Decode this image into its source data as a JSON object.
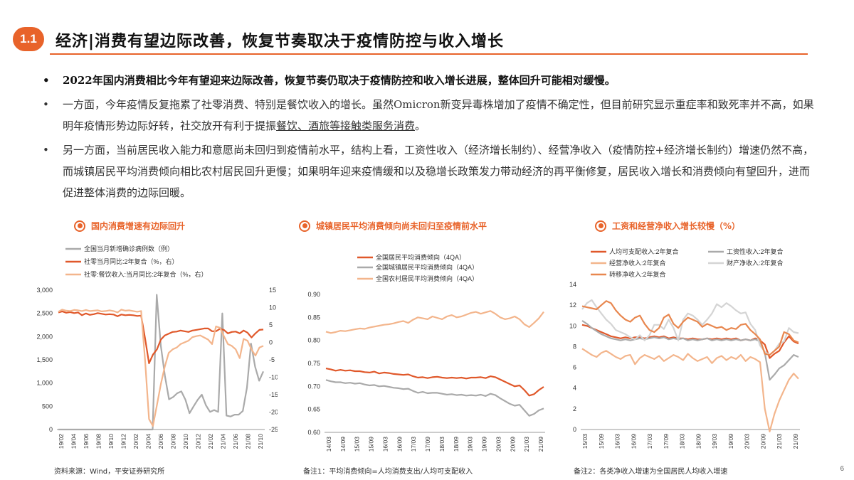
{
  "header": {
    "badge": "1.1",
    "title": "经济|消费有望边际改善，恢复节奏取决于疫情防控与收入增长"
  },
  "bullets": [
    {
      "text": "2022年国内消费相比今年有望迎来边际改善，恢复节奏仍取决于疫情防控和收入增长进展，整体回升可能相对缓慢。"
    },
    {
      "text": "一方面，今年疫情反复拖累了社零消费、特别是餐饮收入的增长。虽然Omicron新变异毒株增加了疫情不确定性，但目前研究显示重症率和致死率并不高，如果明年疫情形势边际好转，社交放开有利于提振",
      "underlined": "餐饮、酒旅等接触类服务消费",
      "tail": "。"
    },
    {
      "text": "另一方面，当前居民收入能力和意愿尚未回归到疫情前水平，结构上看，工资性收入（经济增长制约）、经营净收入（疫情防控+经济增长制约）增速仍然不高，而城镇居民平均消费倾向相比农村居民回升更慢；如果明年迎来疫情缓和以及稳增长政策发力带动经济的再平衡修复，居民收入增长和消费倾向有望回升，进而促进整体消费的边际回暖。"
    }
  ],
  "chart_titles": [
    "国内消费增速有边际回升",
    "城镇居民平均消费倾向尚未回归至疫情前水平",
    "工资和经营净收入增长较慢（%）"
  ],
  "notes": {
    "source": "资料来源：Wind，平安证券研究所",
    "note1": "备注1：平均消费倾向=人均消费支出/人均可支配收入",
    "note2": "备注2：各类净收入增速为全国居民人均收入增速",
    "page": "6"
  },
  "colors": {
    "accent": "#e8632a",
    "dark_orange": "#e0582a",
    "gray": "#aaaaaa",
    "light_orange": "#f3b58c",
    "light_gray": "#d4d4d4"
  },
  "chart_data": [
    {
      "type": "line",
      "legend": [
        "全国当月新增确诊病例数（例）",
        "社零当月同比:2年复合（%，右）",
        "社零:餐饮收入:当月同比:2年复合（%，右）"
      ],
      "xlabels": [
        "19/02",
        "19/04",
        "19/06",
        "19/08",
        "19/10",
        "19/12",
        "20/02",
        "20/04",
        "20/06",
        "20/08",
        "20/10",
        "20/12",
        "21/02",
        "21/04",
        "21/06",
        "21/08",
        "21/10"
      ],
      "ylim": [
        0,
        3000
      ],
      "yticks": [
        "0",
        "500",
        "1,000",
        "1,500",
        "2,000",
        "2,500",
        "3,000"
      ],
      "y2lim": [
        -25,
        15
      ],
      "y2ticks": [
        "-25",
        "-20",
        "-15",
        "-10",
        "-5",
        "0",
        "5",
        "10",
        "15"
      ],
      "series": [
        {
          "name": "全国当月新增确诊病例数（例）",
          "axis": "left",
          "color": "#aaaaaa",
          "values": [
            0,
            0,
            0,
            0,
            0,
            0,
            0,
            0,
            0,
            0,
            0,
            0,
            0,
            0,
            0,
            0,
            0,
            0,
            0,
            0,
            0,
            0,
            0,
            0,
            2900,
            1800,
            1150,
            650,
            700,
            780,
            820,
            640,
            350,
            500,
            640,
            750,
            520,
            380,
            420,
            380,
            2500,
            300,
            280,
            320,
            320,
            400,
            900,
            1850,
            1350,
            1050,
            1250
          ]
        },
        {
          "name": "社零当月同比:2年复合（%，右）",
          "axis": "right",
          "color": "#e0582a",
          "values": [
            8.6,
            8.9,
            8.5,
            8.7,
            8.4,
            8.6,
            7.8,
            8.3,
            7.9,
            8.1,
            8.4,
            8.2,
            8.0,
            8.1,
            8.0,
            7.5,
            8.0,
            7.8,
            7.9,
            7.8,
            7.6,
            7.7,
            1.2,
            -6.0,
            -3.5,
            -2.0,
            0.8,
            2.0,
            2.5,
            3.0,
            3.1,
            3.4,
            3.2,
            3.0,
            3.4,
            3.6,
            3.8,
            4.0,
            4.0,
            3.2,
            3.2,
            3.9,
            3.6,
            2.6,
            3.0,
            3.1,
            2.6,
            3.4,
            2.8,
            1.4,
            2.6,
            3.6,
            3.7
          ]
        },
        {
          "name": "社零:餐饮收入:当月同比:2年复合（%，右）",
          "axis": "right",
          "color": "#f3b58c",
          "values": [
            8.8,
            9.4,
            9.1,
            9.0,
            9.3,
            9.2,
            9.0,
            9.3,
            9.0,
            9.1,
            9.2,
            8.9,
            9.0,
            9.2,
            9.0,
            8.6,
            9.4,
            9.1,
            9.2,
            9.0,
            8.8,
            9.0,
            -5.0,
            -22.0,
            -24.0,
            -18.0,
            -12.0,
            -7.0,
            -3.0,
            -2.0,
            -1.5,
            -0.5,
            0.0,
            0.5,
            1.5,
            1.8,
            2.0,
            1.4,
            0.8,
            -0.5,
            4.6,
            4.2,
            1.8,
            -0.5,
            -1.0,
            -2.0,
            -4.5,
            1.0,
            0.5,
            -2.0,
            -3.8,
            -1.5,
            -1.0
          ]
        }
      ]
    },
    {
      "type": "line",
      "legend": [
        "全国居民平均消费倾向（4QA）",
        "全国城镇居民平均消费倾向（4QA）",
        "全国农村居民平均消费倾向（4QA）"
      ],
      "xlabels": [
        "14/03",
        "14/09",
        "15/03",
        "15/09",
        "16/03",
        "16/09",
        "17/03",
        "17/09",
        "18/03",
        "18/09",
        "19/03",
        "19/09",
        "20/03",
        "20/09",
        "21/03",
        "21/09"
      ],
      "ylim": [
        0.6,
        0.9
      ],
      "yticks": [
        "0.60",
        "0.65",
        "0.70",
        "0.75",
        "0.80",
        "0.85",
        "0.90"
      ],
      "series": [
        {
          "name": "全国居民平均消费倾向（4QA）",
          "color": "#e0582a",
          "values": [
            0.739,
            0.737,
            0.734,
            0.736,
            0.734,
            0.735,
            0.733,
            0.733,
            0.731,
            0.73,
            0.732,
            0.728,
            0.73,
            0.729,
            0.727,
            0.726,
            0.725,
            0.726,
            0.722,
            0.719,
            0.72,
            0.718,
            0.72,
            0.721,
            0.719,
            0.718,
            0.719,
            0.718,
            0.719,
            0.717,
            0.719,
            0.719,
            0.72,
            0.718,
            0.722,
            0.72,
            0.715,
            0.71,
            0.705,
            0.7,
            0.702,
            0.692,
            0.68,
            0.683,
            0.692,
            0.699
          ]
        },
        {
          "name": "全国城镇居民平均消费倾向（4QA）",
          "color": "#aaaaaa",
          "values": [
            0.714,
            0.711,
            0.709,
            0.709,
            0.707,
            0.708,
            0.706,
            0.707,
            0.704,
            0.702,
            0.703,
            0.7,
            0.701,
            0.699,
            0.697,
            0.696,
            0.694,
            0.695,
            0.69,
            0.686,
            0.688,
            0.685,
            0.686,
            0.686,
            0.684,
            0.682,
            0.683,
            0.681,
            0.682,
            0.68,
            0.681,
            0.68,
            0.682,
            0.679,
            0.684,
            0.681,
            0.674,
            0.668,
            0.662,
            0.658,
            0.66,
            0.648,
            0.636,
            0.64,
            0.648,
            0.652
          ]
        },
        {
          "name": "全国农村居民平均消费倾向（4QA）",
          "color": "#f3b58c",
          "values": [
            0.819,
            0.816,
            0.818,
            0.821,
            0.82,
            0.822,
            0.824,
            0.826,
            0.825,
            0.828,
            0.83,
            0.832,
            0.834,
            0.835,
            0.837,
            0.84,
            0.842,
            0.838,
            0.845,
            0.85,
            0.848,
            0.846,
            0.852,
            0.849,
            0.846,
            0.852,
            0.855,
            0.85,
            0.852,
            0.856,
            0.86,
            0.862,
            0.858,
            0.861,
            0.864,
            0.858,
            0.85,
            0.846,
            0.848,
            0.852,
            0.846,
            0.835,
            0.829,
            0.838,
            0.848,
            0.862
          ]
        }
      ]
    },
    {
      "type": "line",
      "legend": [
        "人均可支配收入:2年复合",
        "工资性收入:2年复合",
        "经营净收入:2年复合",
        "财产净收入:2年复合",
        "转移净收入:2年复合"
      ],
      "xlabels": [
        "15/03",
        "15/09",
        "16/03",
        "16/09",
        "17/03",
        "17/09",
        "18/03",
        "18/09",
        "19/03",
        "19/09",
        "20/03",
        "20/09",
        "21/03",
        "21/09"
      ],
      "ylim": [
        0,
        14
      ],
      "yticks": [
        "0",
        "2",
        "4",
        "6",
        "8",
        "10",
        "12",
        "14"
      ],
      "series": [
        {
          "name": "人均可支配收入:2年复合",
          "color": "#e0582a",
          "values": [
            10.1,
            10.0,
            9.8,
            9.6,
            9.4,
            9.2,
            9.0,
            8.9,
            8.8,
            8.9,
            8.8,
            8.9,
            8.9,
            8.8,
            8.9,
            9.0,
            8.9,
            9.0,
            8.8,
            8.9,
            8.8,
            8.8,
            8.7,
            8.8,
            8.7,
            8.7,
            8.8,
            8.7,
            8.8,
            8.7,
            8.8,
            8.7,
            8.8,
            8.6,
            8.7,
            8.6,
            8.8,
            8.6,
            8.2,
            6.9,
            7.3,
            7.6,
            8.4,
            9.0,
            8.5,
            8.3
          ]
        },
        {
          "name": "工资性收入:2年复合",
          "color": "#aaaaaa",
          "values": [
            10.5,
            10.2,
            9.8,
            9.5,
            9.2,
            9.0,
            8.8,
            8.7,
            8.6,
            8.7,
            8.6,
            8.7,
            8.8,
            8.7,
            8.8,
            8.9,
            8.8,
            8.9,
            8.7,
            8.8,
            8.7,
            8.8,
            8.6,
            8.7,
            8.6,
            8.7,
            8.8,
            8.6,
            8.7,
            8.6,
            8.7,
            8.6,
            8.7,
            8.6,
            8.7,
            8.6,
            8.7,
            8.5,
            7.4,
            4.8,
            5.3,
            5.9,
            6.2,
            6.7,
            7.2,
            7.0
          ]
        },
        {
          "name": "经营净收入:2年复合",
          "color": "#f3b58c",
          "values": [
            7.8,
            7.5,
            7.2,
            7.0,
            7.4,
            7.6,
            7.3,
            7.0,
            6.8,
            7.1,
            7.2,
            6.3,
            6.9,
            7.2,
            7.0,
            6.8,
            7.1,
            6.6,
            6.9,
            7.2,
            7.0,
            6.7,
            7.3,
            6.9,
            6.6,
            6.8,
            7.0,
            6.4,
            6.9,
            7.1,
            6.7,
            7.0,
            6.8,
            7.2,
            6.6,
            7.0,
            6.8,
            6.5,
            2.0,
            -0.2,
            1.5,
            2.8,
            3.8,
            4.8,
            5.4,
            4.9
          ]
        },
        {
          "name": "财产净收入:2年复合",
          "color": "#d4d4d4",
          "values": [
            11.6,
            12.2,
            12.5,
            11.8,
            11.2,
            10.6,
            10.2,
            9.6,
            9.4,
            9.2,
            8.9,
            8.7,
            9.1,
            8.6,
            9.1,
            10.1,
            10.1,
            9.7,
            10.6,
            9.8,
            8.6,
            10.6,
            11.2,
            11.0,
            10.6,
            10.1,
            10.6,
            11.2,
            12.1,
            11.8,
            12.2,
            11.9,
            11.5,
            11.2,
            11.3,
            10.2,
            9.6,
            8.1,
            7.5,
            7.2,
            7.6,
            8.3,
            8.5,
            9.8,
            9.4,
            9.3
          ]
        },
        {
          "name": "转移净收入:2年复合",
          "color": "#e8874f",
          "values": [
            11.9,
            11.8,
            11.7,
            11.6,
            12.0,
            12.4,
            12.2,
            11.5,
            11.0,
            10.6,
            10.4,
            10.8,
            11.0,
            10.2,
            9.6,
            9.4,
            9.8,
            10.8,
            11.1,
            10.2,
            9.8,
            10.4,
            10.8,
            10.6,
            10.4,
            9.9,
            10.2,
            10.0,
            9.8,
            9.9,
            9.6,
            9.8,
            9.7,
            10.1,
            10.2,
            9.6,
            9.2,
            8.7,
            7.3,
            7.2,
            7.6,
            8.0,
            9.4,
            9.2,
            8.6,
            8.4
          ]
        }
      ]
    }
  ]
}
